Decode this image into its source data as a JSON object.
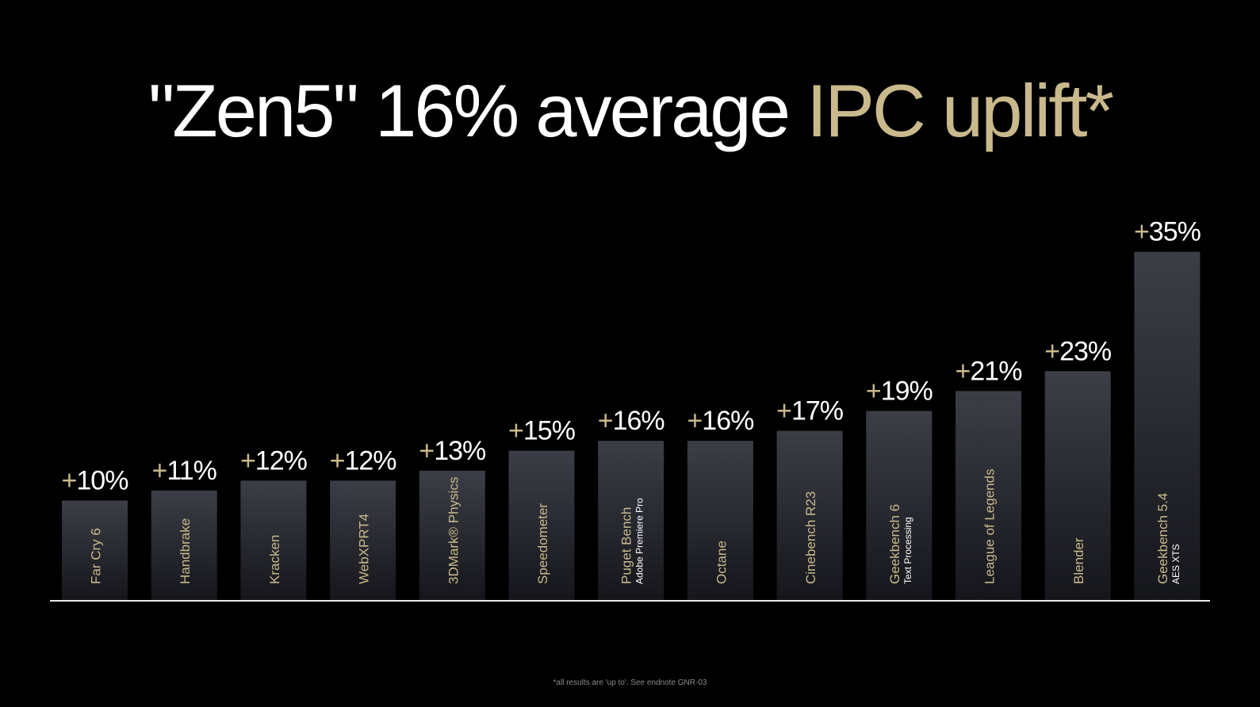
{
  "slide": {
    "title_white": "\"Zen5\" 16% average ",
    "title_gold": "IPC uplift*",
    "footnote": "*all results are 'up to'. See endnote GNR-03"
  },
  "colors": {
    "background": "#000000",
    "bar_top": "#3c3e47",
    "bar_bottom": "#15161b",
    "category_label": "#c9b98c",
    "value_text": "#ffffff",
    "plus_sign": "#c9b98c",
    "baseline": "#e8e8e8"
  },
  "chart_data": {
    "type": "bar",
    "title": "\"Zen5\" 16% average IPC uplift*",
    "ylim": [
      0,
      38
    ],
    "grid": false,
    "legend": "none",
    "categories": [
      {
        "name": "Far Cry 6",
        "sub": ""
      },
      {
        "name": "Handbrake",
        "sub": ""
      },
      {
        "name": "Kracken",
        "sub": ""
      },
      {
        "name": "WebXPRT4",
        "sub": ""
      },
      {
        "name": "3DMark® Physics",
        "sub": ""
      },
      {
        "name": "Speedometer",
        "sub": ""
      },
      {
        "name": "Puget Bench",
        "sub": "Adobe Premiere Pro"
      },
      {
        "name": "Octane",
        "sub": ""
      },
      {
        "name": "Cinebench R23",
        "sub": ""
      },
      {
        "name": "Geekbench 6",
        "sub": "Text Processing"
      },
      {
        "name": "League of Legends",
        "sub": ""
      },
      {
        "name": "Blender",
        "sub": ""
      },
      {
        "name": "Geekbench 5.4",
        "sub": "AES XTS"
      }
    ],
    "values": [
      10,
      11,
      12,
      12,
      13,
      15,
      16,
      16,
      17,
      19,
      21,
      23,
      35
    ],
    "value_labels": [
      "10%",
      "11%",
      "12%",
      "12%",
      "13%",
      "15%",
      "16%",
      "16%",
      "17%",
      "19%",
      "21%",
      "23%",
      "35%"
    ],
    "value_prefix": "+"
  }
}
